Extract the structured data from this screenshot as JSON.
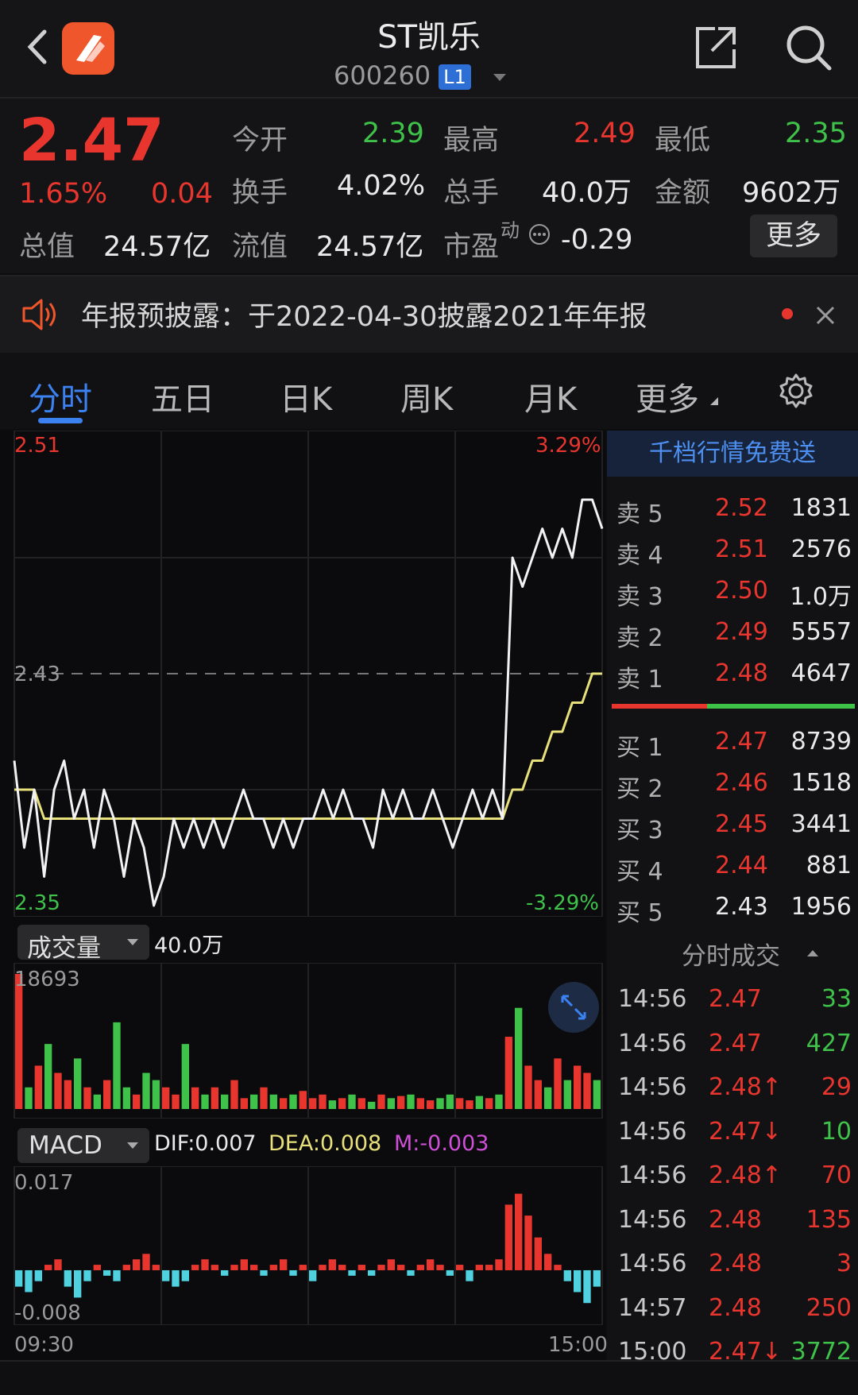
{
  "header": {
    "title": "ST凯乐",
    "code": "600260",
    "level_badge": "L1"
  },
  "quote": {
    "price": "2.47",
    "change_pct": "1.65%",
    "change": "0.04",
    "stats": [
      {
        "label": "今开",
        "value": "2.39",
        "color": "#3fc24a"
      },
      {
        "label": "最高",
        "value": "2.49",
        "color": "#e8362f"
      },
      {
        "label": "最低",
        "value": "2.35",
        "color": "#3fc24a"
      },
      {
        "label": "换手",
        "value": "4.02%",
        "color": "#e9e9e9"
      },
      {
        "label": "总手",
        "value": "40.0万",
        "color": "#e9e9e9"
      },
      {
        "label": "金额",
        "value": "9602万",
        "color": "#e9e9e9"
      }
    ],
    "total_value_label": "总值",
    "total_value": "24.57亿",
    "float_value_label": "流值",
    "float_value": "24.57亿",
    "pe_label": "市盈",
    "pe_superscript": "动",
    "pe_value": "-0.29",
    "more_label": "更多"
  },
  "notice": {
    "text": "年报预披露：于2022-04-30披露2021年年报"
  },
  "tabs": [
    {
      "label": "分时",
      "active": true
    },
    {
      "label": "五日",
      "active": false
    },
    {
      "label": "日K",
      "active": false
    },
    {
      "label": "周K",
      "active": false
    },
    {
      "label": "月K",
      "active": false
    },
    {
      "label": "更多",
      "active": false
    }
  ],
  "chart_labels": {
    "price_high": "2.51",
    "price_mid": "2.43",
    "price_low": "2.35",
    "pct_high": "3.29%",
    "pct_low": "-3.29%",
    "volume_selector": "成交量",
    "volume_total": "40.0万",
    "volume_max": "18693",
    "macd_selector": "MACD",
    "dif": "DIF:0.007",
    "dea": "DEA:0.008",
    "m": "M:-0.003",
    "macd_high": "0.017",
    "macd_low": "-0.008",
    "time_start": "09:30",
    "time_end": "15:00"
  },
  "chart_data": {
    "type": "line",
    "title": "",
    "ylim": [
      2.35,
      2.51
    ],
    "prev_close": 2.43,
    "series": [
      {
        "values": [
          2.4,
          2.37,
          2.39,
          2.36,
          2.39,
          2.4,
          2.38,
          2.39,
          2.37,
          2.39,
          2.38,
          2.36,
          2.38,
          2.37,
          2.35,
          2.36,
          2.38,
          2.37,
          2.38,
          2.37,
          2.38,
          2.37,
          2.38,
          2.39,
          2.38,
          2.38,
          2.37,
          2.38,
          2.37,
          2.38,
          2.38,
          2.39,
          2.38,
          2.39,
          2.38,
          2.38,
          2.37,
          2.39,
          2.38,
          2.39,
          2.38,
          2.38,
          2.39,
          2.38,
          2.37,
          2.38,
          2.39,
          2.38,
          2.39,
          2.38,
          2.47,
          2.46,
          2.47,
          2.48,
          2.47,
          2.48,
          2.47,
          2.49,
          2.49,
          2.48
        ]
      },
      {
        "values": [
          2.39,
          2.39,
          2.39,
          2.38,
          2.38,
          2.38,
          2.38,
          2.38,
          2.38,
          2.38,
          2.38,
          2.38,
          2.38,
          2.38,
          2.38,
          2.38,
          2.38,
          2.38,
          2.38,
          2.38,
          2.38,
          2.38,
          2.38,
          2.38,
          2.38,
          2.38,
          2.38,
          2.38,
          2.38,
          2.38,
          2.38,
          2.38,
          2.38,
          2.38,
          2.38,
          2.38,
          2.38,
          2.38,
          2.38,
          2.38,
          2.38,
          2.38,
          2.38,
          2.38,
          2.38,
          2.38,
          2.38,
          2.38,
          2.38,
          2.38,
          2.39,
          2.39,
          2.4,
          2.4,
          2.41,
          2.41,
          2.42,
          2.42,
          2.43,
          2.43
        ]
      }
    ],
    "volume": [
      18693,
      3000,
      6000,
      9000,
      5000,
      4000,
      7000,
      3000,
      2000,
      4000,
      12000,
      3000,
      2000,
      5000,
      4000,
      3000,
      2000,
      9000,
      3000,
      2000,
      3000,
      2000,
      4000,
      1500,
      2000,
      3000,
      2000,
      1500,
      2000,
      2500,
      1500,
      2000,
      1200,
      1500,
      2000,
      1500,
      1000,
      2000,
      1500,
      1800,
      2000,
      1500,
      1200,
      1500,
      2000,
      1500,
      1200,
      1800,
      1500,
      2000,
      10000,
      14000,
      6000,
      4000,
      3000,
      7000,
      4000,
      6000,
      5000,
      4000
    ],
    "volume_ylim": [
      0,
      18693
    ],
    "macd": [
      -0.003,
      -0.004,
      -0.002,
      0.001,
      0.002,
      -0.003,
      -0.005,
      -0.002,
      0.001,
      -0.001,
      -0.002,
      0.001,
      0.002,
      0.003,
      0.001,
      -0.002,
      -0.003,
      -0.002,
      0.001,
      0.002,
      0.001,
      -0.001,
      0.001,
      0.002,
      0.001,
      -0.001,
      0.001,
      0.002,
      -0.001,
      0.001,
      -0.002,
      0.001,
      0.002,
      0.001,
      -0.001,
      0.001,
      -0.001,
      0.001,
      0.002,
      0.001,
      -0.001,
      0.001,
      0.002,
      0.001,
      -0.001,
      0.001,
      -0.002,
      0.001,
      0.001,
      0.002,
      0.012,
      0.014,
      0.01,
      0.006,
      0.003,
      0.001,
      -0.002,
      -0.004,
      -0.006,
      -0.003
    ],
    "macd_ylim": [
      -0.008,
      0.017
    ]
  },
  "orderbook": {
    "header": "千档行情免费送",
    "asks": [
      {
        "label": "卖 5",
        "price": "2.52",
        "vol": "1831"
      },
      {
        "label": "卖 4",
        "price": "2.51",
        "vol": "2576"
      },
      {
        "label": "卖 3",
        "price": "2.50",
        "vol": "1.0万"
      },
      {
        "label": "卖 2",
        "price": "2.49",
        "vol": "5557"
      },
      {
        "label": "卖 1",
        "price": "2.48",
        "vol": "4647"
      }
    ],
    "bids": [
      {
        "label": "买 1",
        "price": "2.47",
        "vol": "8739",
        "color": "#e8362f"
      },
      {
        "label": "买 2",
        "price": "2.46",
        "vol": "1518",
        "color": "#e8362f"
      },
      {
        "label": "买 3",
        "price": "2.45",
        "vol": "3441",
        "color": "#e8362f"
      },
      {
        "label": "买 4",
        "price": "2.44",
        "vol": "881",
        "color": "#e8362f"
      },
      {
        "label": "买 5",
        "price": "2.43",
        "vol": "1956",
        "color": "#e9e9e9"
      }
    ],
    "ticks_header": "分时成交",
    "ticks": [
      {
        "time": "14:56",
        "price": "2.47",
        "vol": "33",
        "vol_color": "#3fc24a"
      },
      {
        "time": "14:56",
        "price": "2.47",
        "vol": "427",
        "vol_color": "#3fc24a"
      },
      {
        "time": "14:56",
        "price": "2.48↑",
        "vol": "29",
        "vol_color": "#e8362f"
      },
      {
        "time": "14:56",
        "price": "2.47↓",
        "vol": "10",
        "vol_color": "#3fc24a"
      },
      {
        "time": "14:56",
        "price": "2.48↑",
        "vol": "70",
        "vol_color": "#e8362f"
      },
      {
        "time": "14:56",
        "price": "2.48",
        "vol": "135",
        "vol_color": "#e8362f"
      },
      {
        "time": "14:56",
        "price": "2.48",
        "vol": "3",
        "vol_color": "#e8362f"
      },
      {
        "time": "14:57",
        "price": "2.48",
        "vol": "250",
        "vol_color": "#e8362f"
      },
      {
        "time": "15:00",
        "price": "2.47↓",
        "vol": "3772",
        "vol_color": "#3fc24a"
      }
    ]
  },
  "colors": {
    "up": "#e8362f",
    "down": "#3fc24a",
    "accent": "#2e6fd6",
    "avg_line": "#e8e07a",
    "macd_down": "#4fd1e0",
    "m_color": "#d04fd8"
  }
}
